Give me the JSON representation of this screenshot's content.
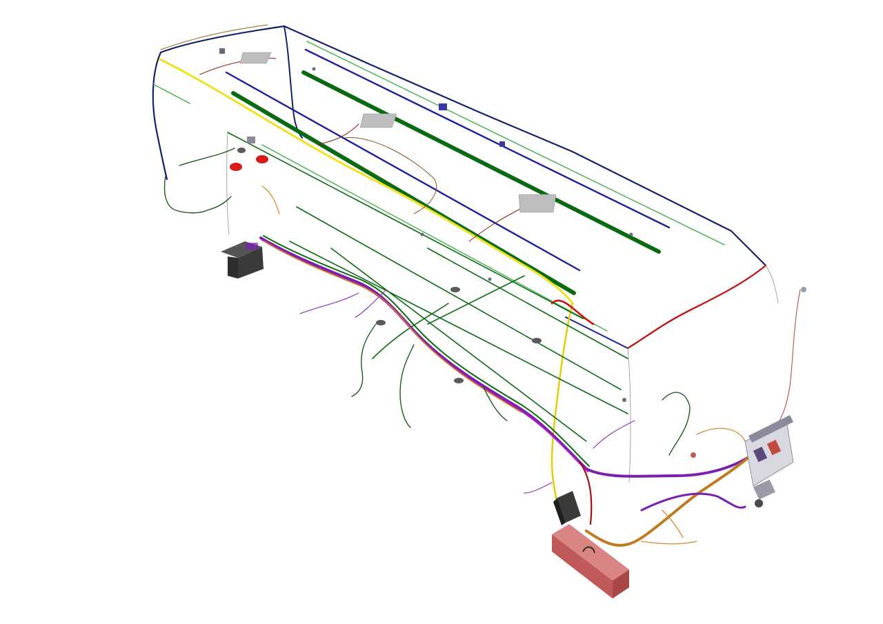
{
  "diagram": {
    "kind": "vehicle-wiring-harness-isometric",
    "background": "#ffffff",
    "wire_colors": {
      "blue": "#1b1f9a",
      "navy": "#14206b",
      "green": "#0a6a12",
      "light_green": "#3fb04a",
      "yellow": "#f0e020",
      "red": "#c01818",
      "dark_red": "#8a1a10",
      "purple": "#7a1fb0",
      "magenta": "#b020c0",
      "orange": "#d07a10",
      "brown": "#8a4a1a",
      "grey": "#8a8a8a"
    },
    "components": {
      "battery_box_color": "#cf6a68",
      "ecu_color": "#3a3a3a",
      "lamp_color": "#d81a1a",
      "panel_color": "#bdbdbd",
      "fuse_board_color": "#c8c8d0"
    }
  }
}
